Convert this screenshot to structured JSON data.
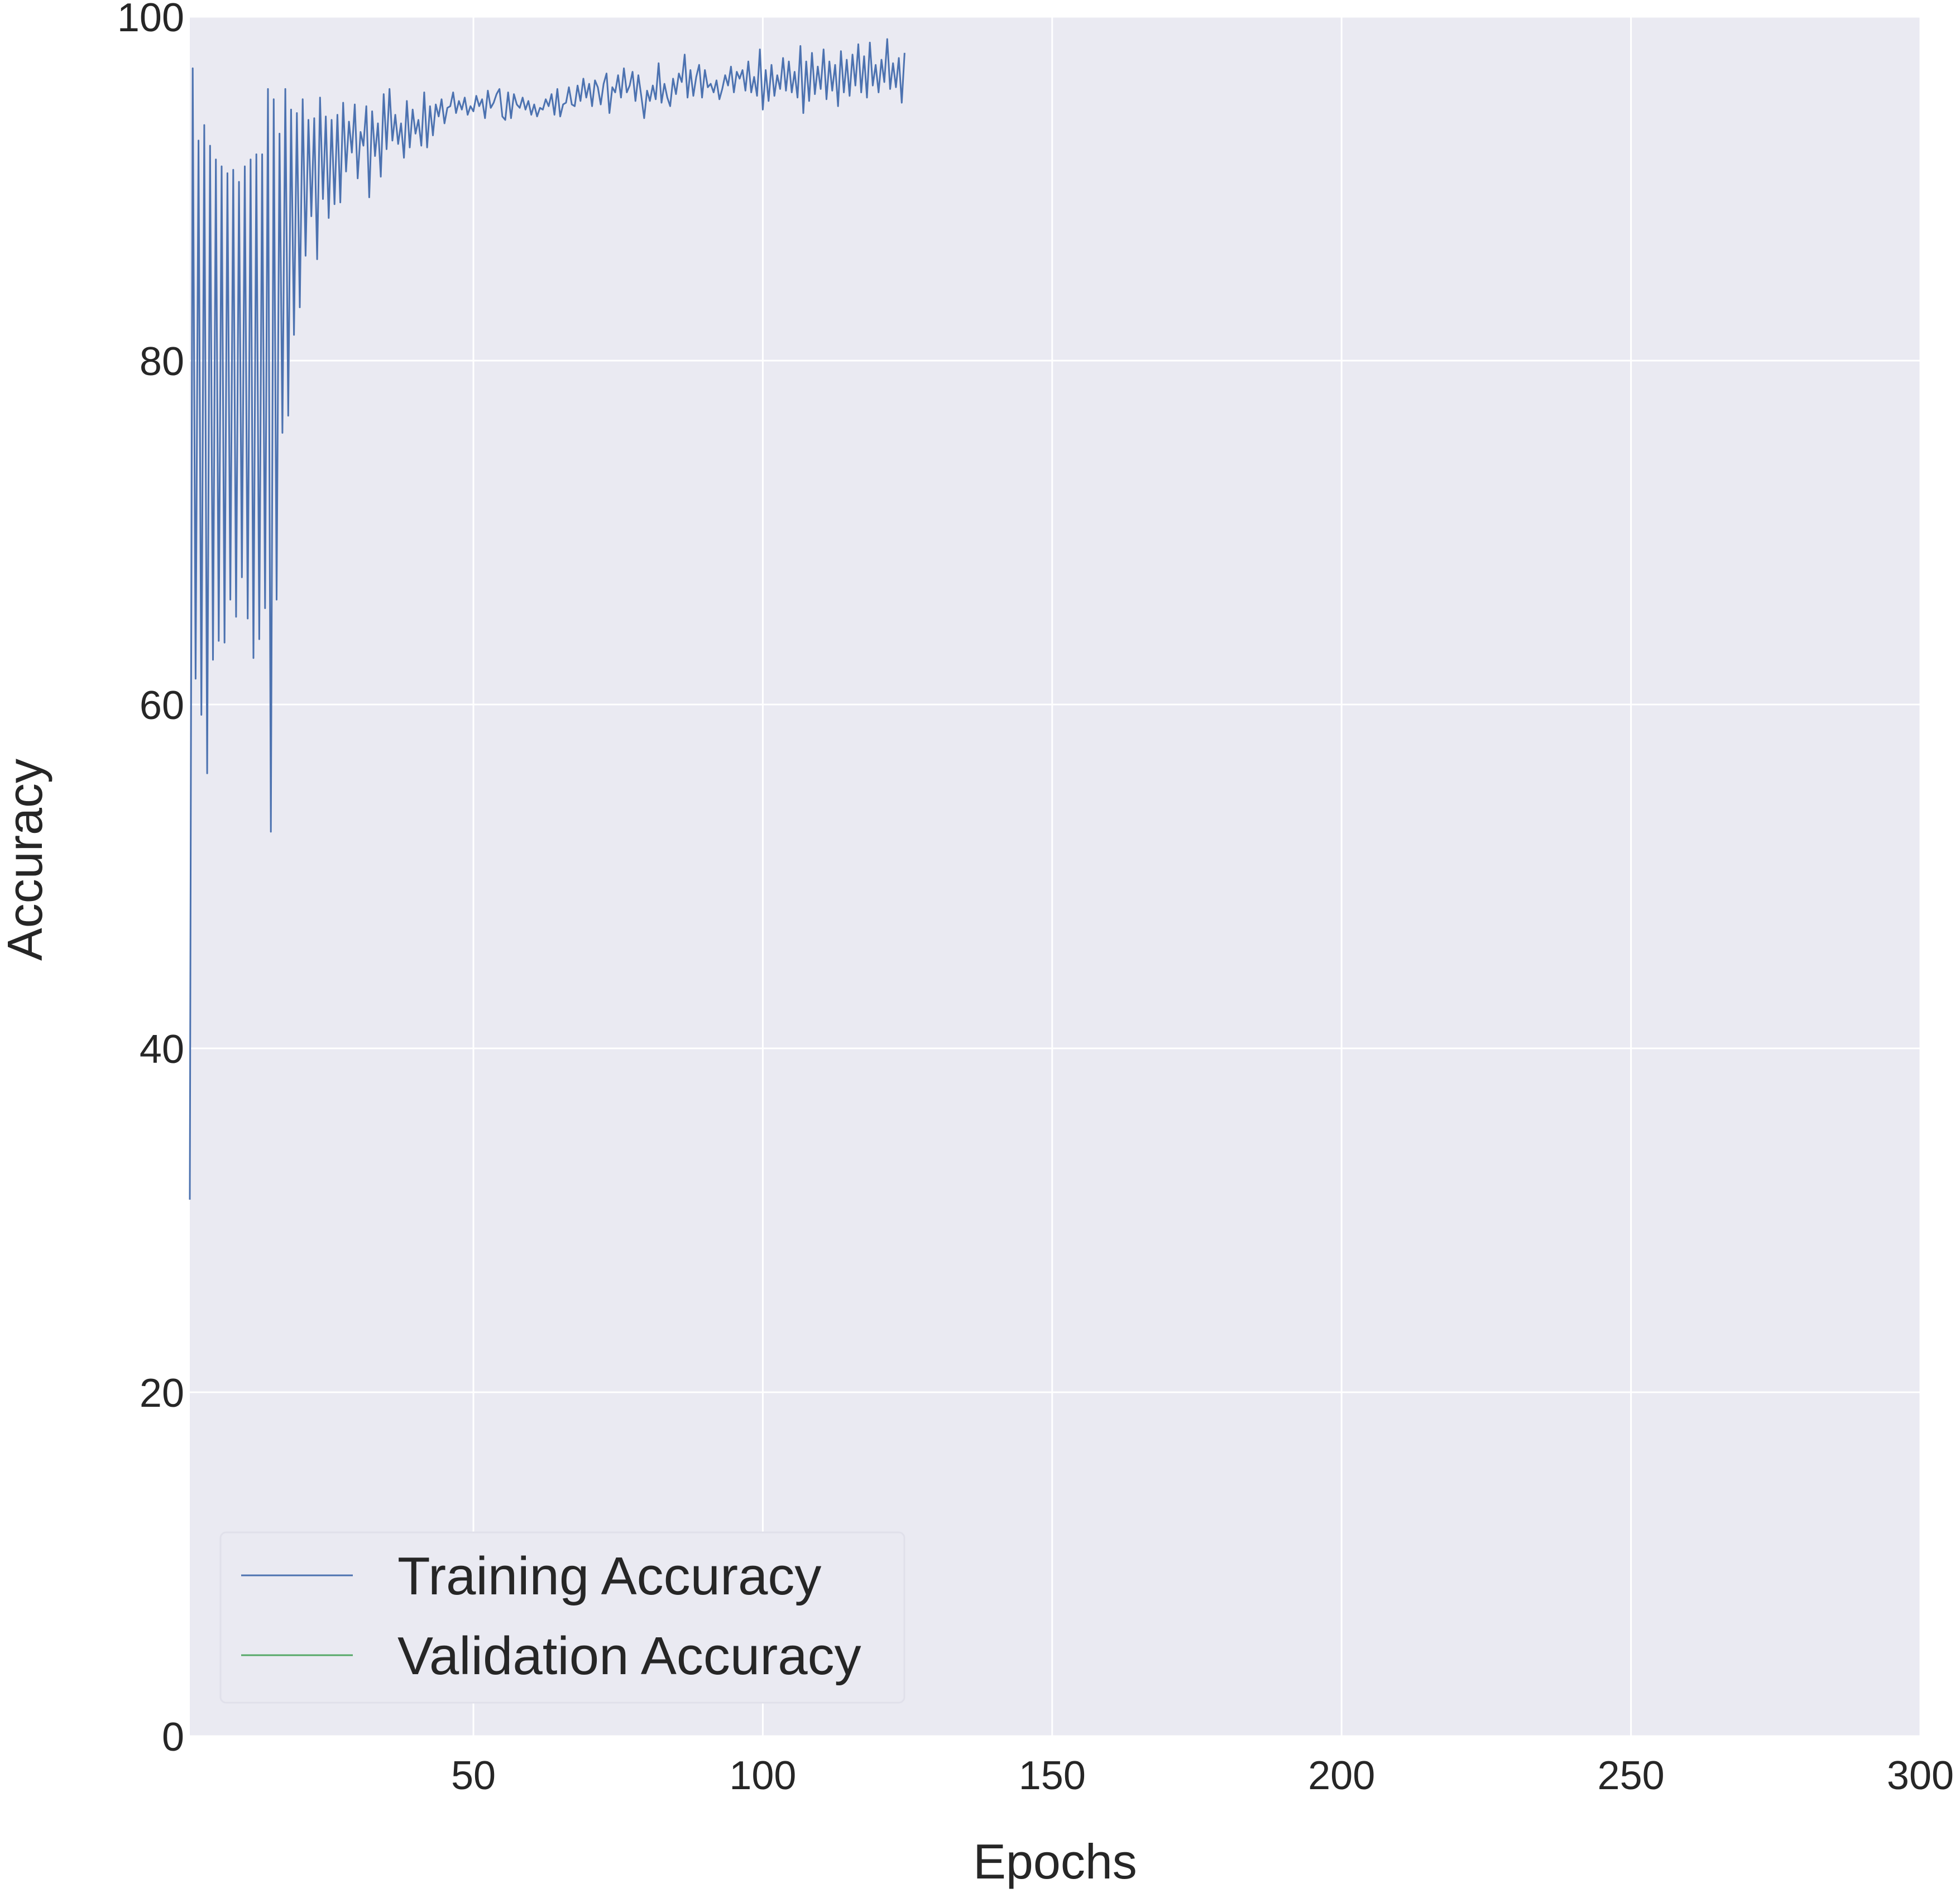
{
  "chart_data": {
    "type": "line",
    "xlabel": "Epochs",
    "ylabel": "Accuracy",
    "xlim": [
      1,
      300
    ],
    "ylim": [
      0,
      100
    ],
    "x_ticks": [
      50,
      100,
      150,
      200,
      250,
      300
    ],
    "y_ticks": [
      0,
      20,
      40,
      60,
      80,
      100
    ],
    "grid": true,
    "legend_position": "lower-left",
    "colors": {
      "background": "#eaeaf2",
      "grid": "#ffffff",
      "training": "#4c72b0",
      "validation": "#55a868",
      "legend_frame": "#e0e0ea"
    },
    "series": [
      {
        "name": "Training Accuracy",
        "color": "#4c72b0",
        "x_start": 1,
        "x_step": 0.5,
        "values": [
          31.2,
          97.0,
          61.5,
          92.8,
          59.4,
          93.7,
          56.0,
          92.5,
          62.6,
          91.7,
          63.7,
          91.3,
          63.6,
          90.9,
          66.1,
          91.1,
          65.1,
          90.4,
          67.4,
          91.3,
          65.0,
          91.7,
          62.7,
          92.0,
          63.8,
          92.0,
          65.6,
          95.8,
          52.6,
          95.2,
          66.1,
          93.2,
          75.8,
          95.8,
          76.8,
          94.6,
          81.5,
          94.4,
          83.1,
          95.2,
          86.1,
          94.0,
          88.4,
          94.1,
          85.9,
          95.3,
          89.4,
          94.2,
          88.3,
          94.0,
          89.1,
          94.3,
          89.2,
          95.0,
          91.0,
          93.9,
          92.1,
          94.9,
          90.6,
          93.3,
          92.5,
          94.8,
          89.5,
          94.5,
          91.9,
          93.8,
          90.7,
          95.5,
          92.3,
          95.8,
          92.8,
          94.3,
          92.6,
          93.8,
          91.8,
          95.1,
          92.4,
          94.6,
          93.2,
          94.0,
          92.5,
          95.6,
          92.4,
          94.8,
          93.1,
          94.9,
          94.2,
          95.2,
          93.8,
          94.7,
          94.8,
          95.6,
          94.4,
          95.1,
          94.6,
          95.3,
          94.3,
          94.8,
          94.5,
          95.4,
          94.8,
          95.2,
          94.1,
          95.7,
          94.7,
          95.0,
          95.5,
          95.8,
          94.2,
          94.0,
          95.6,
          94.1,
          95.5,
          94.9,
          94.7,
          95.3,
          94.6,
          95.1,
          94.3,
          94.9,
          94.2,
          94.7,
          94.6,
          95.2,
          94.8,
          95.5,
          94.3,
          95.8,
          94.2,
          94.9,
          95.0,
          95.9,
          94.9,
          94.8,
          96.0,
          95.1,
          96.4,
          95.3,
          96.1,
          94.8,
          96.3,
          95.9,
          94.9,
          96.1,
          96.7,
          94.4,
          95.9,
          95.6,
          96.6,
          95.3,
          97.0,
          95.6,
          96.0,
          96.8,
          95.1,
          96.6,
          95.4,
          94.1,
          95.7,
          95.1,
          96.0,
          95.2,
          97.3,
          95.0,
          96.1,
          95.3,
          94.8,
          96.4,
          95.5,
          96.7,
          96.2,
          97.8,
          95.3,
          96.9,
          95.4,
          96.5,
          97.2,
          95.3,
          96.9,
          95.9,
          96.1,
          95.6,
          96.3,
          95.2,
          95.8,
          96.6,
          96.0,
          97.1,
          95.6,
          96.8,
          96.4,
          96.9,
          95.7,
          97.4,
          95.6,
          96.5,
          95.4,
          98.1,
          94.6,
          96.9,
          95.1,
          97.2,
          95.4,
          96.6,
          95.8,
          97.6,
          95.7,
          97.4,
          95.6,
          96.8,
          95.3,
          98.3,
          94.4,
          97.4,
          95.1,
          97.9,
          95.5,
          97.1,
          95.8,
          98.1,
          95.2,
          97.4,
          95.7,
          97.2,
          94.8,
          98.0,
          95.6,
          97.5,
          95.4,
          97.8,
          96.0,
          98.4,
          95.6,
          97.7,
          95.3,
          98.5,
          96.0,
          97.2,
          95.6,
          97.5,
          96.2,
          98.7,
          95.8,
          97.3,
          95.9,
          97.6,
          95.0,
          97.9
        ],
        "values_note_hidden": ""
      },
      {
        "name": "Validation Accuracy",
        "color": "#55a868",
        "values": []
      }
    ]
  }
}
